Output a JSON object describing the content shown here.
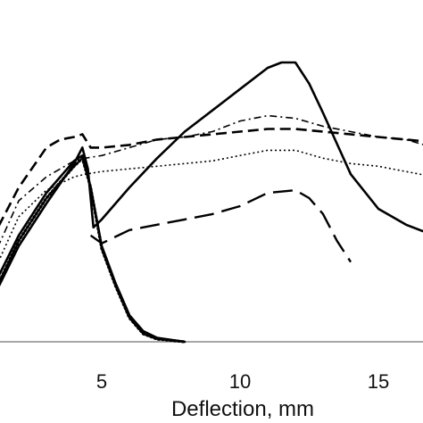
{
  "chart_data": {
    "type": "line",
    "title": "",
    "xlabel": "Deflection, mm",
    "ylabel": "",
    "xlim": [
      1,
      17
    ],
    "ylim": [
      0,
      10.5
    ],
    "x_ticks": [
      5,
      10,
      15
    ],
    "grid": false,
    "legend": "none",
    "series": [
      {
        "style": "solid",
        "points": [
          [
            1,
            1.5
          ],
          [
            2,
            3.6
          ],
          [
            3,
            5.2
          ],
          [
            4,
            6.7
          ],
          [
            4.3,
            7.3
          ],
          [
            4.5,
            6.5
          ],
          [
            4.7,
            4.3
          ],
          [
            5,
            4.6
          ],
          [
            6,
            5.8
          ],
          [
            7,
            6.9
          ],
          [
            8,
            7.9
          ],
          [
            9,
            8.7
          ],
          [
            10,
            9.5
          ],
          [
            11,
            10.3
          ],
          [
            11.5,
            10.5
          ],
          [
            12,
            10.5
          ],
          [
            12.5,
            9.7
          ],
          [
            13,
            8.6
          ],
          [
            14,
            6.3
          ],
          [
            15,
            5.0
          ],
          [
            16,
            4.4
          ],
          [
            17,
            4.0
          ]
        ]
      },
      {
        "style": "solid",
        "points": [
          [
            1,
            1.9
          ],
          [
            2,
            4.0
          ],
          [
            3,
            5.6
          ],
          [
            4,
            6.8
          ],
          [
            4.3,
            7.0
          ],
          [
            4.6,
            5.8
          ],
          [
            5,
            3.6
          ],
          [
            5.5,
            2.2
          ],
          [
            6,
            1.0
          ],
          [
            6.5,
            0.4
          ],
          [
            7,
            0.15
          ],
          [
            8,
            0.0
          ]
        ]
      },
      {
        "style": "dotted-heavy",
        "points": [
          [
            1,
            1.6
          ],
          [
            2,
            3.8
          ],
          [
            3,
            5.4
          ],
          [
            4,
            6.6
          ],
          [
            4.3,
            6.9
          ],
          [
            4.6,
            5.8
          ],
          [
            5,
            3.5
          ],
          [
            5.5,
            2.1
          ],
          [
            6,
            0.9
          ],
          [
            6.5,
            0.3
          ],
          [
            7,
            0.1
          ],
          [
            8,
            0.0
          ]
        ]
      },
      {
        "style": "long-dash",
        "points": [
          [
            4.6,
            4.0
          ],
          [
            5,
            3.7
          ],
          [
            6,
            4.2
          ],
          [
            7,
            4.4
          ],
          [
            8,
            4.6
          ],
          [
            9,
            4.8
          ],
          [
            10,
            5.1
          ],
          [
            11,
            5.6
          ],
          [
            12,
            5.7
          ],
          [
            12.5,
            5.4
          ],
          [
            13,
            4.8
          ],
          [
            13.5,
            3.8
          ],
          [
            14,
            3.0
          ]
        ]
      },
      {
        "style": "medium-dash",
        "points": [
          [
            1,
            3.8
          ],
          [
            2,
            5.8
          ],
          [
            3,
            7.3
          ],
          [
            3.5,
            7.6
          ],
          [
            4,
            7.7
          ],
          [
            4.3,
            7.8
          ],
          [
            4.6,
            7.3
          ],
          [
            5,
            7.3
          ],
          [
            6,
            7.4
          ],
          [
            7,
            7.6
          ],
          [
            8,
            7.7
          ],
          [
            9,
            7.8
          ],
          [
            10,
            7.9
          ],
          [
            11,
            8.0
          ],
          [
            12,
            8.0
          ],
          [
            13,
            7.9
          ],
          [
            14,
            7.8
          ],
          [
            15,
            7.7
          ],
          [
            16,
            7.6
          ],
          [
            17,
            7.5
          ]
        ]
      },
      {
        "style": "dash-dot",
        "points": [
          [
            1,
            3.0
          ],
          [
            2,
            5.3
          ],
          [
            3,
            6.2
          ],
          [
            4,
            6.8
          ],
          [
            4.4,
            6.9
          ],
          [
            5,
            7.0
          ],
          [
            6,
            7.3
          ],
          [
            7,
            7.6
          ],
          [
            8,
            7.7
          ],
          [
            9,
            7.9
          ],
          [
            10,
            8.3
          ],
          [
            11,
            8.5
          ],
          [
            12,
            8.4
          ],
          [
            13,
            8.1
          ],
          [
            14,
            7.9
          ],
          [
            15,
            7.7
          ],
          [
            16,
            7.6
          ],
          [
            17,
            7.3
          ]
        ]
      },
      {
        "style": "fine-dot",
        "points": [
          [
            1,
            2.4
          ],
          [
            2,
            4.7
          ],
          [
            3,
            5.7
          ],
          [
            4,
            6.2
          ],
          [
            4.4,
            6.3
          ],
          [
            5,
            6.4
          ],
          [
            6,
            6.5
          ],
          [
            7,
            6.6
          ],
          [
            8,
            6.7
          ],
          [
            9,
            6.8
          ],
          [
            10,
            7.0
          ],
          [
            11,
            7.2
          ],
          [
            12,
            7.2
          ],
          [
            13,
            6.9
          ],
          [
            14,
            6.7
          ],
          [
            15,
            6.6
          ],
          [
            16,
            6.4
          ],
          [
            17,
            6.2
          ]
        ]
      }
    ]
  }
}
